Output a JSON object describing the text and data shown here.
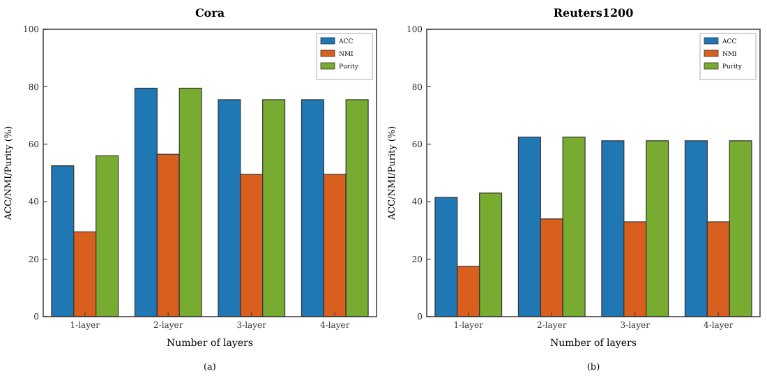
{
  "chart_data": [
    {
      "type": "bar",
      "title": "Cora",
      "xlabel": "Number of layers",
      "ylabel": "ACC/NMI/Purity (%)",
      "categories": [
        "1-layer",
        "2-layer",
        "3-layer",
        "4-layer"
      ],
      "series": [
        {
          "name": "ACC",
          "color": "#1f77b4",
          "values": [
            52.5,
            79.5,
            75.5,
            75.5
          ]
        },
        {
          "name": "NMI",
          "color": "#d95f1e",
          "values": [
            29.5,
            56.5,
            49.5,
            49.5
          ]
        },
        {
          "name": "Purity",
          "color": "#77ac30",
          "values": [
            56,
            79.5,
            75.5,
            75.5
          ]
        }
      ],
      "ylim": [
        0,
        100
      ],
      "yticks": [
        0,
        20,
        40,
        60,
        80,
        100
      ],
      "grid": false,
      "legend": "top right",
      "annotations": [
        "(a)"
      ]
    },
    {
      "type": "bar",
      "title": "Reuters1200",
      "xlabel": "Number of layers",
      "ylabel": "ACC/NMI/Purity (%)",
      "categories": [
        "1-layer",
        "2-layer",
        "3-layer",
        "4-layer"
      ],
      "series": [
        {
          "name": "ACC",
          "color": "#1f77b4",
          "values": [
            41.5,
            62.5,
            61.2,
            61.2
          ]
        },
        {
          "name": "NMI",
          "color": "#d95f1e",
          "values": [
            17.5,
            34,
            33,
            33
          ]
        },
        {
          "name": "Purity",
          "color": "#77ac30",
          "values": [
            43,
            62.5,
            61.2,
            61.2
          ]
        }
      ],
      "ylim": [
        0,
        100
      ],
      "yticks": [
        0,
        20,
        40,
        60,
        80,
        100
      ],
      "grid": false,
      "legend": "top right",
      "annotations": [
        "(b)"
      ]
    }
  ]
}
